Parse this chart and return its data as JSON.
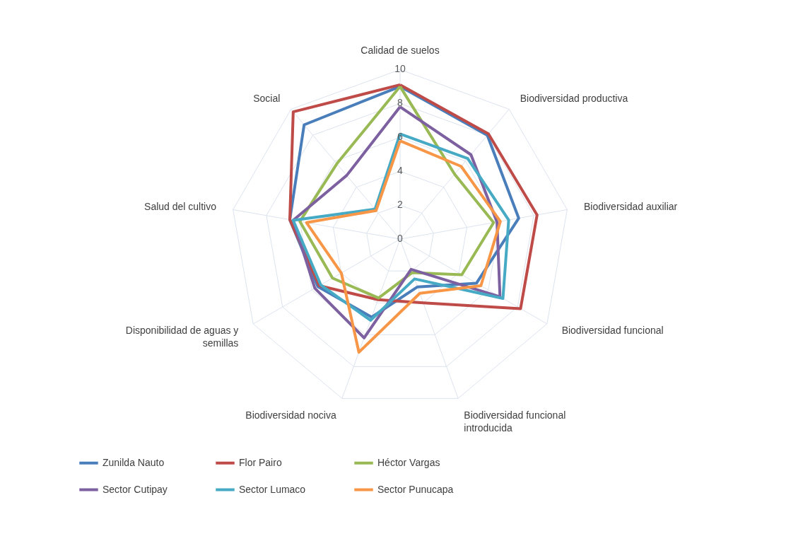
{
  "chart_data": {
    "type": "radar",
    "categories": [
      "Calidad de suelos",
      "Biodiversidad productiva",
      "Biodiversidad auxiliar",
      "Biodiversidad funcional",
      "Biodiversidad funcional introducida",
      "Biodiversidad nociva",
      "Disponibilidad de aguas y semillas",
      "Salud del cultivo",
      "Social"
    ],
    "series": [
      {
        "name": "Zunilda Nauto",
        "color": "#4a7ebb",
        "values": [
          9,
          8,
          7.1,
          5.2,
          3,
          4.9,
          5.6,
          6.6,
          8.8
        ]
      },
      {
        "name": "Flor Pairo",
        "color": "#be4b48",
        "values": [
          9.1,
          8.1,
          8.2,
          8.2,
          4,
          3.8,
          5.5,
          6.6,
          9.8
        ]
      },
      {
        "name": "Héctor Vargas",
        "color": "#98b954",
        "values": [
          9,
          5,
          5.6,
          4.2,
          2.1,
          3.7,
          4.6,
          6,
          5.8
        ]
      },
      {
        "name": "Sector Cutipay",
        "color": "#7d60a0",
        "values": [
          7.8,
          6.5,
          5.8,
          6.8,
          1.9,
          6.2,
          5.8,
          6.4,
          4.9
        ]
      },
      {
        "name": "Sector Lumaco",
        "color": "#46aac5",
        "values": [
          6.2,
          6.2,
          6.5,
          7,
          2.5,
          5.1,
          5.4,
          6.4,
          2.3
        ]
      },
      {
        "name": "Sector Punucapa",
        "color": "#f79646",
        "values": [
          5.8,
          5.6,
          6,
          5.5,
          3.4,
          7.1,
          4,
          5.6,
          2.2
        ]
      }
    ],
    "ylim": [
      0,
      10
    ],
    "yticks": [
      0,
      2,
      4,
      6,
      8,
      10
    ],
    "grid": true,
    "legend": "bottom",
    "line_style": "solid",
    "marker": "none"
  }
}
